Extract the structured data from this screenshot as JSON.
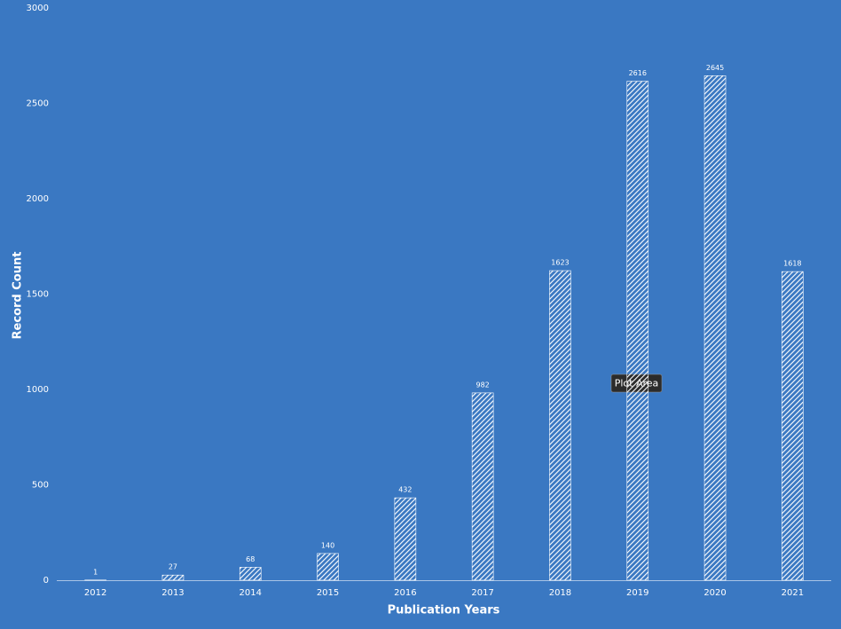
{
  "chart_data": {
    "type": "bar",
    "x_label": "Publication Years",
    "y_label": "Record Count",
    "categories": [
      "2012",
      "2013",
      "2014",
      "2015",
      "2016",
      "2017",
      "2018",
      "2019",
      "2020",
      "2021"
    ],
    "values": [
      1,
      27,
      68,
      140,
      432,
      982,
      1623,
      2616,
      2645,
      1618
    ],
    "color": "#ffffff",
    "background": "#3a78c2",
    "ylim": [
      0,
      3000
    ],
    "yticks": [
      0,
      500,
      1000,
      1500,
      2000,
      2500,
      3000
    ],
    "grid": false
  },
  "tooltip": "Plot Area"
}
